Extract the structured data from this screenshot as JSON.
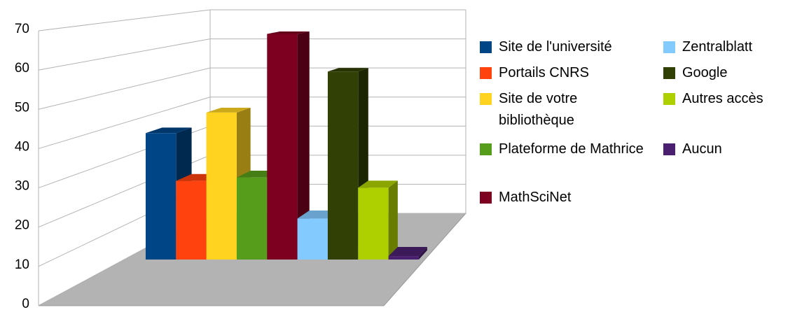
{
  "chart_data": {
    "type": "bar",
    "series": [
      {
        "name": "Site de l'université",
        "color": "#004586",
        "values": [
          37
        ]
      },
      {
        "name": "Portails CNRS",
        "color": "#ff420e",
        "values": [
          23
        ]
      },
      {
        "name": "Site de votre bibliothèque",
        "color": "#ffd320",
        "values": [
          43
        ]
      },
      {
        "name": "Plateforme de Mathrice",
        "color": "#579d1c",
        "values": [
          24
        ]
      },
      {
        "name": "MathSciNet",
        "color": "#7e0021",
        "values": [
          66
        ]
      },
      {
        "name": "Zentralblatt",
        "color": "#83caff",
        "values": [
          12
        ]
      },
      {
        "name": "Google",
        "color": "#314004",
        "values": [
          55
        ]
      },
      {
        "name": "Autres accès",
        "color": "#aecf00",
        "values": [
          21
        ]
      },
      {
        "name": "Aucun",
        "color": "#4b1f6f",
        "values": [
          1
        ]
      }
    ],
    "ylim": [
      0,
      70
    ],
    "yticks": [
      0,
      10,
      20,
      30,
      40,
      50,
      60,
      70
    ],
    "grid": true,
    "legend": "right"
  }
}
